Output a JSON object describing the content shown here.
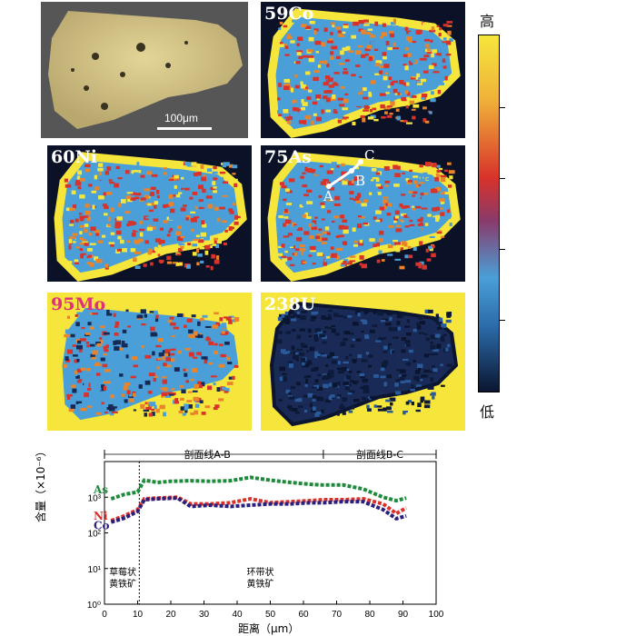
{
  "panels": {
    "photo": {
      "scale_label": "100μm"
    },
    "co": {
      "label": "59Co"
    },
    "ni": {
      "label": "60Ni"
    },
    "as": {
      "label": "75As",
      "point_a": "A",
      "point_b": "B",
      "point_c": "C"
    },
    "mo": {
      "label": "95Mo"
    },
    "u": {
      "label": "238U"
    }
  },
  "colorbar": {
    "high": "高",
    "low": "低"
  },
  "colors": {
    "yellow": "#f6e63c",
    "red": "#d8322a",
    "orange": "#e9842a",
    "blue": "#4a9fd8",
    "navy": "#152a55",
    "green": "#1e8a3c",
    "purple": "#2a1f7a"
  },
  "chart_data": {
    "type": "line",
    "xlabel": "距离（μm）",
    "ylabel": "含量（×10⁻⁶）",
    "xlim": [
      0,
      100
    ],
    "ylim_log": [
      1,
      10000
    ],
    "xticks": [
      "0",
      "10",
      "20",
      "30",
      "40",
      "50",
      "60",
      "70",
      "80",
      "90",
      "100"
    ],
    "yticks": [
      "10⁰",
      "10¹",
      "10²",
      "10³"
    ],
    "profile_ab": "剖面线A-B",
    "profile_bc": "剖面线B-C",
    "zone1": "草莓状\n黄铁矿",
    "zone2": "环带状\n黄铁矿",
    "series": [
      {
        "name": "As",
        "color": "#1e8a3c",
        "x": [
          2,
          6,
          10,
          12,
          16,
          20,
          26,
          32,
          38,
          44,
          50,
          56,
          62,
          66,
          72,
          78,
          84,
          88,
          91
        ],
        "y": [
          900,
          1200,
          1400,
          3000,
          2600,
          2800,
          2900,
          2800,
          2900,
          3600,
          3000,
          2600,
          2300,
          2200,
          2200,
          1700,
          1000,
          800,
          950
        ]
      },
      {
        "name": "Ni",
        "color": "#d8322a",
        "x": [
          2,
          6,
          10,
          12,
          16,
          22,
          26,
          32,
          38,
          44,
          50,
          56,
          62,
          66,
          72,
          78,
          84,
          88,
          91
        ],
        "y": [
          220,
          300,
          450,
          900,
          950,
          1000,
          650,
          650,
          700,
          900,
          700,
          750,
          800,
          850,
          850,
          900,
          650,
          350,
          500
        ]
      },
      {
        "name": "Co",
        "color": "#2a1f7a",
        "x": [
          2,
          6,
          10,
          12,
          16,
          22,
          26,
          32,
          38,
          44,
          50,
          56,
          62,
          66,
          72,
          78,
          84,
          88,
          91
        ],
        "y": [
          200,
          260,
          400,
          850,
          900,
          950,
          550,
          600,
          550,
          600,
          650,
          650,
          700,
          700,
          750,
          750,
          450,
          250,
          300
        ]
      }
    ]
  }
}
